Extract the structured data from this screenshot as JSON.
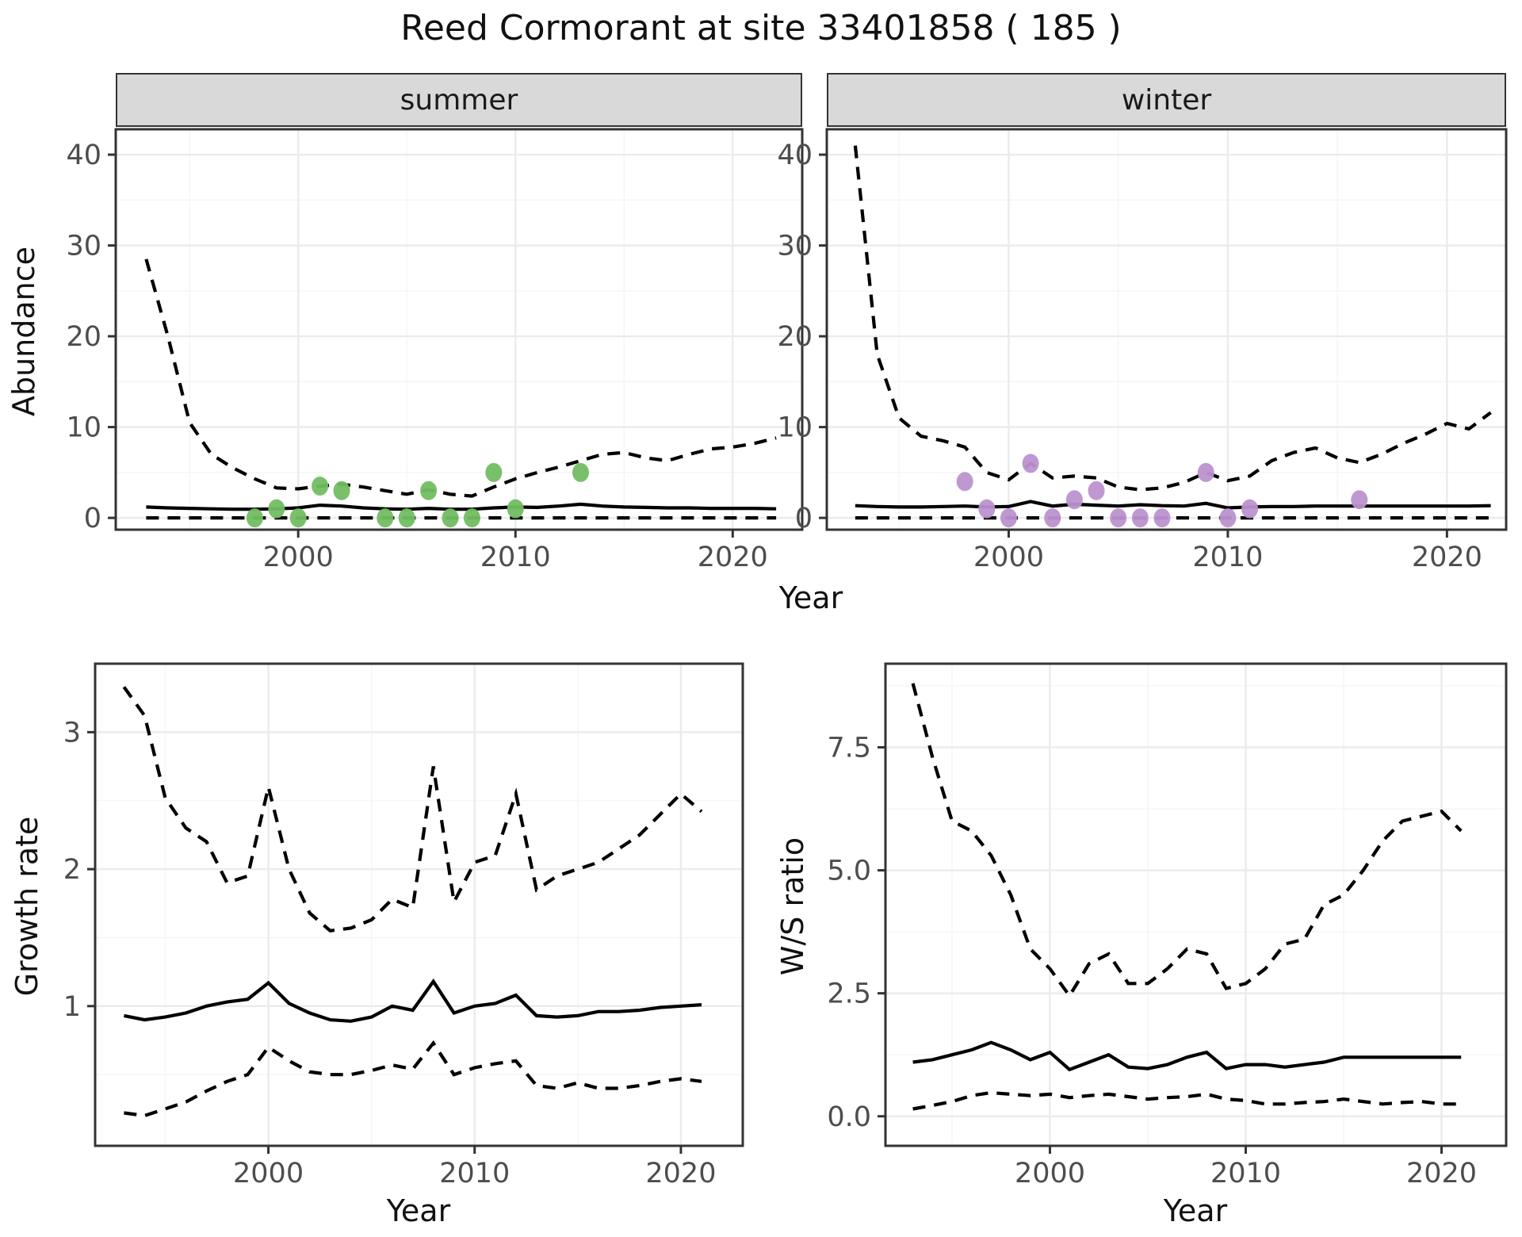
{
  "title": "Reed Cormorant at site 33401858 ( 185 )",
  "facets": {
    "summer_label": "summer",
    "winter_label": "winter"
  },
  "axes": {
    "abundance_label": "Abundance",
    "growth_label": "Growth rate",
    "ws_label": "W/S ratio",
    "year_label_top": "Year",
    "year_label_bottom_left": "Year",
    "year_label_bottom_right": "Year"
  },
  "colors": {
    "summer_point": "#72BD63",
    "winter_point": "#BC92CF",
    "line": "#000000",
    "grid_major": "#EBEBEB",
    "grid_minor": "#F6F6F6",
    "panel_border": "#333333",
    "tick_text": "#4D4D4D",
    "strip_bg": "#D9D9D9"
  },
  "chart_data": [
    {
      "type": "line",
      "facet": "summer",
      "ylabel": "Abundance",
      "xlabel": "Year",
      "grid": true,
      "legend": "none",
      "years": [
        1993,
        1994,
        1995,
        1996,
        1997,
        1998,
        1999,
        2000,
        2001,
        2002,
        2003,
        2004,
        2005,
        2006,
        2007,
        2008,
        2009,
        2010,
        2011,
        2012,
        2013,
        2014,
        2015,
        2016,
        2017,
        2018,
        2019,
        2020,
        2021,
        2022
      ],
      "series": [
        {
          "name": "upper_ci",
          "style": "dashed",
          "values": [
            28.5,
            20.0,
            10.5,
            7.0,
            5.5,
            4.3,
            3.3,
            3.2,
            3.5,
            3.7,
            3.4,
            3.0,
            2.6,
            3.1,
            2.6,
            2.4,
            3.4,
            4.3,
            5.0,
            5.6,
            6.3,
            7.0,
            7.2,
            6.6,
            6.3,
            7.0,
            7.6,
            7.8,
            8.2,
            8.8
          ]
        },
        {
          "name": "median",
          "style": "solid",
          "values": [
            1.2,
            1.1,
            1.05,
            1.0,
            0.95,
            0.95,
            1.0,
            1.1,
            1.4,
            1.3,
            1.1,
            1.0,
            0.95,
            1.05,
            0.95,
            0.95,
            1.1,
            1.2,
            1.15,
            1.3,
            1.5,
            1.3,
            1.2,
            1.15,
            1.1,
            1.1,
            1.05,
            1.05,
            1.05,
            1.0
          ]
        },
        {
          "name": "lower_ci",
          "style": "dashed",
          "values": [
            0,
            0,
            0,
            0,
            0,
            0,
            0,
            0,
            0,
            0,
            0,
            0,
            0,
            0,
            0,
            0,
            0,
            0,
            0,
            0,
            0,
            0,
            0,
            0,
            0,
            0,
            0,
            0,
            0,
            0
          ]
        }
      ],
      "points": {
        "name": "observed_counts",
        "color": "#72BD63",
        "data": [
          [
            1998,
            0
          ],
          [
            1999,
            1
          ],
          [
            2000,
            0
          ],
          [
            2001,
            3.5
          ],
          [
            2002,
            3
          ],
          [
            2004,
            0
          ],
          [
            2005,
            0
          ],
          [
            2006,
            3
          ],
          [
            2007,
            0
          ],
          [
            2008,
            0
          ],
          [
            2009,
            5
          ],
          [
            2010,
            1
          ],
          [
            2013,
            5
          ]
        ]
      },
      "x_ticks": [
        {
          "v": 2000,
          "label": "2000"
        },
        {
          "v": 2010,
          "label": "2010"
        },
        {
          "v": 2020,
          "label": "2020"
        }
      ],
      "y_ticks": [
        {
          "v": 0,
          "label": "0"
        },
        {
          "v": 10,
          "label": "10"
        },
        {
          "v": 20,
          "label": "20"
        },
        {
          "v": 30,
          "label": "30"
        },
        {
          "v": 40,
          "label": "40"
        }
      ],
      "xlim": [
        1991.6,
        2023.2
      ],
      "ylim": [
        -1.3,
        42.8
      ]
    },
    {
      "type": "line",
      "facet": "winter",
      "ylabel": "Abundance",
      "xlabel": "Year",
      "grid": true,
      "legend": "none",
      "years": [
        1993,
        1994,
        1995,
        1996,
        1997,
        1998,
        1999,
        2000,
        2001,
        2002,
        2003,
        2004,
        2005,
        2006,
        2007,
        2008,
        2009,
        2010,
        2011,
        2012,
        2013,
        2014,
        2015,
        2016,
        2017,
        2018,
        2019,
        2020,
        2021,
        2022
      ],
      "series": [
        {
          "name": "upper_ci",
          "style": "dashed",
          "values": [
            41.0,
            18.0,
            11.0,
            9.0,
            8.5,
            7.8,
            5.0,
            4.2,
            6.0,
            4.4,
            4.6,
            4.4,
            3.4,
            3.1,
            3.3,
            3.9,
            5.0,
            4.1,
            4.6,
            6.3,
            7.2,
            7.7,
            6.6,
            6.1,
            7.0,
            8.2,
            9.2,
            10.4,
            9.8,
            11.6
          ]
        },
        {
          "name": "median",
          "style": "solid",
          "values": [
            1.35,
            1.25,
            1.2,
            1.2,
            1.25,
            1.3,
            1.2,
            1.25,
            1.8,
            1.3,
            1.5,
            1.4,
            1.3,
            1.45,
            1.35,
            1.3,
            1.6,
            1.1,
            1.2,
            1.25,
            1.25,
            1.3,
            1.3,
            1.3,
            1.3,
            1.3,
            1.3,
            1.3,
            1.3,
            1.35
          ]
        },
        {
          "name": "lower_ci",
          "style": "dashed",
          "values": [
            0,
            0,
            0,
            0,
            0,
            0,
            0,
            0,
            0,
            0,
            0,
            0,
            0,
            0,
            0,
            0,
            0,
            0,
            0,
            0,
            0,
            0,
            0,
            0,
            0,
            0,
            0,
            0,
            0,
            0
          ]
        }
      ],
      "points": {
        "name": "observed_counts",
        "color": "#BC92CF",
        "data": [
          [
            1998,
            4
          ],
          [
            1999,
            1
          ],
          [
            2000,
            0
          ],
          [
            2001,
            6
          ],
          [
            2002,
            0
          ],
          [
            2003,
            2
          ],
          [
            2004,
            3
          ],
          [
            2005,
            0
          ],
          [
            2006,
            0
          ],
          [
            2007,
            0
          ],
          [
            2009,
            5
          ],
          [
            2010,
            0
          ],
          [
            2011,
            1
          ],
          [
            2016,
            2
          ]
        ]
      },
      "x_ticks": [
        {
          "v": 2000,
          "label": "2000"
        },
        {
          "v": 2010,
          "label": "2010"
        },
        {
          "v": 2020,
          "label": "2020"
        }
      ],
      "y_ticks": [
        {
          "v": 0,
          "label": "0"
        },
        {
          "v": 10,
          "label": "10"
        },
        {
          "v": 20,
          "label": "20"
        },
        {
          "v": 30,
          "label": "30"
        },
        {
          "v": 40,
          "label": "40"
        }
      ],
      "xlim": [
        1991.7,
        2022.7
      ],
      "ylim": [
        -1.3,
        42.8
      ]
    },
    {
      "type": "line",
      "facet": null,
      "ylabel": "Growth rate",
      "xlabel": "Year",
      "grid": true,
      "legend": "none",
      "years": [
        1993,
        1994,
        1995,
        1996,
        1997,
        1998,
        1999,
        2000,
        2001,
        2002,
        2003,
        2004,
        2005,
        2006,
        2007,
        2008,
        2009,
        2010,
        2011,
        2012,
        2013,
        2014,
        2015,
        2016,
        2017,
        2018,
        2019,
        2020,
        2021
      ],
      "series": [
        {
          "name": "upper_ci",
          "style": "dashed",
          "values": [
            3.33,
            3.12,
            2.52,
            2.3,
            2.2,
            1.9,
            1.95,
            2.6,
            2.0,
            1.68,
            1.55,
            1.57,
            1.63,
            1.78,
            1.72,
            2.75,
            1.76,
            2.05,
            2.1,
            2.55,
            1.85,
            1.95,
            2.0,
            2.05,
            2.15,
            2.25,
            2.4,
            2.55,
            2.42
          ]
        },
        {
          "name": "median",
          "style": "solid",
          "values": [
            0.93,
            0.9,
            0.92,
            0.95,
            1.0,
            1.03,
            1.05,
            1.17,
            1.02,
            0.95,
            0.9,
            0.89,
            0.92,
            1.0,
            0.97,
            1.18,
            0.95,
            1.0,
            1.02,
            1.08,
            0.93,
            0.92,
            0.93,
            0.96,
            0.96,
            0.97,
            0.99,
            1.0,
            1.01
          ]
        },
        {
          "name": "lower_ci",
          "style": "dashed",
          "values": [
            0.22,
            0.2,
            0.25,
            0.3,
            0.38,
            0.45,
            0.5,
            0.7,
            0.6,
            0.52,
            0.5,
            0.5,
            0.53,
            0.57,
            0.54,
            0.73,
            0.5,
            0.55,
            0.58,
            0.6,
            0.42,
            0.4,
            0.44,
            0.4,
            0.4,
            0.42,
            0.45,
            0.47,
            0.45
          ]
        }
      ],
      "points": null,
      "x_ticks": [
        {
          "v": 2000,
          "label": "2000"
        },
        {
          "v": 2010,
          "label": "2010"
        },
        {
          "v": 2020,
          "label": "2020"
        }
      ],
      "y_ticks": [
        {
          "v": 1,
          "label": "1"
        },
        {
          "v": 2,
          "label": "2"
        },
        {
          "v": 3,
          "label": "3"
        }
      ],
      "xlim": [
        1991.6,
        2023.0
      ],
      "ylim": [
        -0.02,
        3.5
      ]
    },
    {
      "type": "line",
      "facet": null,
      "ylabel": "W/S ratio",
      "xlabel": "Year",
      "grid": true,
      "legend": "none",
      "years": [
        1993,
        1994,
        1995,
        1996,
        1997,
        1998,
        1999,
        2000,
        2001,
        2002,
        2003,
        2004,
        2005,
        2006,
        2007,
        2008,
        2009,
        2010,
        2011,
        2012,
        2013,
        2014,
        2015,
        2016,
        2017,
        2018,
        2019,
        2020,
        2021
      ],
      "series": [
        {
          "name": "upper_ci",
          "style": "dashed",
          "values": [
            8.8,
            7.3,
            6.0,
            5.8,
            5.3,
            4.5,
            3.4,
            3.0,
            2.45,
            3.1,
            3.3,
            2.7,
            2.7,
            3.0,
            3.4,
            3.3,
            2.6,
            2.7,
            3.0,
            3.5,
            3.6,
            4.3,
            4.5,
            5.0,
            5.6,
            6.0,
            6.1,
            6.2,
            5.8
          ]
        },
        {
          "name": "median",
          "style": "solid",
          "values": [
            1.1,
            1.15,
            1.25,
            1.35,
            1.5,
            1.35,
            1.15,
            1.3,
            0.95,
            1.1,
            1.25,
            1.0,
            0.97,
            1.05,
            1.2,
            1.3,
            0.97,
            1.05,
            1.05,
            1.0,
            1.05,
            1.1,
            1.2,
            1.2,
            1.2,
            1.2,
            1.2,
            1.2,
            1.2
          ]
        },
        {
          "name": "lower_ci",
          "style": "dashed",
          "values": [
            0.15,
            0.22,
            0.3,
            0.42,
            0.48,
            0.45,
            0.42,
            0.45,
            0.38,
            0.42,
            0.45,
            0.4,
            0.35,
            0.38,
            0.4,
            0.45,
            0.35,
            0.32,
            0.25,
            0.25,
            0.28,
            0.3,
            0.35,
            0.3,
            0.25,
            0.28,
            0.3,
            0.25,
            0.25
          ]
        }
      ],
      "points": null,
      "x_ticks": [
        {
          "v": 2000,
          "label": "2000"
        },
        {
          "v": 2010,
          "label": "2010"
        },
        {
          "v": 2020,
          "label": "2020"
        }
      ],
      "y_ticks": [
        {
          "v": 0,
          "label": "0.0"
        },
        {
          "v": 2.5,
          "label": "2.5"
        },
        {
          "v": 5,
          "label": "5.0"
        },
        {
          "v": 7.5,
          "label": "7.5"
        }
      ],
      "xlim": [
        1991.6,
        2023.3
      ],
      "ylim": [
        -0.6,
        9.2
      ]
    }
  ]
}
